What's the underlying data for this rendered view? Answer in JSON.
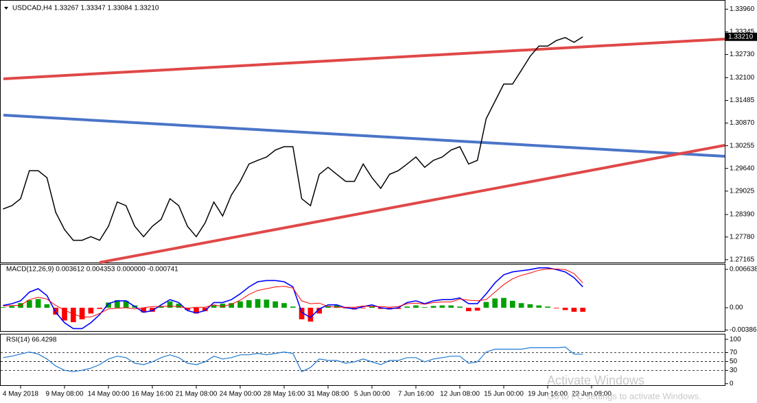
{
  "chart_data": [
    {
      "type": "line",
      "title": "USDCAD,H4 1.33267 1.33347 1.33084 1.33210",
      "color": "#000000",
      "last_price_label": "1.33210",
      "categories": [
        null,
        null,
        "4 May 2018",
        null,
        null,
        null,
        null,
        "9 May 08:00",
        null,
        null,
        null,
        null,
        "14 May 00:00",
        null,
        null,
        null,
        null,
        "16 May 16:00",
        null,
        null,
        null,
        null,
        "21 May 08:00",
        null,
        null,
        null,
        null,
        "24 May 00:00",
        null,
        null,
        null,
        null,
        "28 May 16:00",
        null,
        null,
        null,
        null,
        "31 May 08:00",
        null,
        null,
        null,
        null,
        "5 Jun 00:00",
        null,
        null,
        null,
        null,
        "7 Jun 16:00",
        null,
        null,
        null,
        null,
        "12 Jun 08:00",
        null,
        null,
        null,
        null,
        "15 Jun 00:00",
        null,
        null,
        null,
        null,
        "19 Jun 16:00",
        null,
        null,
        null,
        null,
        "22 Jun 08:00"
      ],
      "values": [
        1.2854,
        1.2863,
        1.2882,
        1.2958,
        1.2958,
        1.2939,
        1.2845,
        1.2798,
        1.2769,
        1.2769,
        1.2779,
        1.2769,
        1.2807,
        1.2873,
        1.2863,
        1.2807,
        1.2779,
        1.2807,
        1.2826,
        1.2882,
        1.2863,
        1.2807,
        1.2779,
        1.2816,
        1.2873,
        1.2835,
        1.2892,
        1.2929,
        1.2976,
        1.2986,
        1.2995,
        1.3014,
        1.3023,
        1.3023,
        1.2882,
        1.2863,
        1.2948,
        1.2967,
        1.2948,
        1.2929,
        1.2929,
        1.2976,
        1.2939,
        1.291,
        1.2948,
        1.2958,
        1.2976,
        1.2995,
        1.2967,
        1.2986,
        1.2995,
        1.3014,
        1.3023,
        1.2976,
        1.2986,
        1.3099,
        1.3146,
        1.3193,
        1.3193,
        1.323,
        1.3268,
        1.3296,
        1.3296,
        1.3311,
        1.3319,
        1.3306,
        1.3321,
        null
      ],
      "ylim": [
        1.2707,
        1.3419
      ],
      "yticks": [
        {
          "value": 1.3396,
          "label": "1.33960"
        },
        1.33345,
        {
          "value": 1.3273,
          "label": "1.32730"
        },
        {
          "value": 1.321,
          "label": "1.32100"
        },
        1.31485,
        {
          "value": 1.3087,
          "label": "1.30870"
        },
        1.30255,
        {
          "value": 1.2964,
          "label": "1.29640"
        },
        1.29025,
        {
          "value": 1.2839,
          "label": "1.28390"
        },
        {
          "value": 1.2778,
          "label": "1.27780"
        },
        1.27165
      ]
    },
    {
      "type": "macd",
      "title": "MACD(12,26,9) 0.003612 0.004353 0.000000 -0.000741",
      "series": [
        {
          "color": "#0000ff",
          "values": [
            0.0004,
            0.0007,
            0.0012,
            0.0027,
            0.0033,
            0.0021,
            -0.0008,
            -0.0026,
            -0.0036,
            -0.0036,
            -0.0026,
            -0.0012,
            0.0007,
            0.0012,
            0.0012,
            0.0002,
            -0.0008,
            -0.0005,
            0.0005,
            0.0014,
            0.0009,
            -0.0005,
            -0.0009,
            -0.0005,
            0.0009,
            0.0009,
            0.0014,
            0.0024,
            0.0036,
            0.0045,
            0.0047,
            0.0047,
            0.0045,
            0.0036,
            -0.0008,
            -0.0017,
            -0.0002,
            0.0005,
            0.0005,
            0,
            -0.0002,
            0.0002,
            0.0005,
            0,
            -0.0002,
            0,
            0.0009,
            0.0012,
            0.0007,
            0.0012,
            0.0014,
            0.0014,
            0.0017,
            0.0007,
            0.0007,
            0.0024,
            0.0043,
            0.0057,
            0.0062,
            0.0064,
            0.0066,
            0.0069,
            0.0069,
            0.0066,
            0.0062,
            0.0052,
            0.0036,
            null
          ]
        },
        {
          "color": "#ff0000",
          "values": [
            0.0003,
            0.0004,
            0.0004,
            0.0014,
            0.0018,
            0.0015,
            0.0004,
            -0.0004,
            -0.0011,
            -0.0016,
            -0.0016,
            -0.001,
            -0.0002,
            -0.0001,
            0,
            -0.0002,
            0,
            0.0002,
            0.0002,
            0.0003,
            0.0002,
            -0.0001,
            0.0001,
            0.0001,
            0.0005,
            0.0002,
            0.0006,
            0.0013,
            0.0023,
            0.003,
            0.0033,
            0.0036,
            0.0037,
            0.0034,
            0.0012,
            0.0007,
            0.0008,
            0.0002,
            0.0001,
            0.0001,
            0.0001,
            0.0003,
            0.0002,
            0.0002,
            0.0001,
            0.0002,
            0.0007,
            0.0008,
            0.0006,
            0.0009,
            0.001,
            0.001,
            0.0015,
            0.0013,
            0.0012,
            0.0014,
            0.0027,
            0.004,
            0.005,
            0.0056,
            0.006,
            0.0065,
            0.0067,
            0.0067,
            0.0066,
            0.0059,
            0.0043,
            null
          ]
        }
      ],
      "histogram": {
        "positive_color": "#00a000",
        "negative_color": "#ff0000",
        "values": [
          0.0001,
          0.0003,
          0.0008,
          0.0013,
          0.0015,
          0.0006,
          -0.0012,
          -0.0022,
          -0.0025,
          -0.002,
          -0.001,
          -0.0002,
          0.0009,
          0.0013,
          0.0012,
          0.0004,
          -0.0008,
          -0.0007,
          0.0003,
          0.0011,
          0.0007,
          -0.0004,
          -0.001,
          -0.0006,
          0.0004,
          0.0007,
          0.0008,
          0.0011,
          0.0013,
          0.0015,
          0.0014,
          0.0011,
          0.0008,
          0.0002,
          -0.002,
          -0.0024,
          -0.001,
          0.0003,
          0.0004,
          -0.0001,
          -0.0003,
          -0.0001,
          0.0003,
          -0.0002,
          -0.0003,
          -0.0002,
          0.0002,
          0.0004,
          0.0001,
          0.0003,
          0.0004,
          0.0004,
          0.0002,
          -0.0006,
          -0.0005,
          0.001,
          0.0016,
          0.0017,
          0.0012,
          0.0008,
          0.0006,
          0.0004,
          0.0002,
          -0.0001,
          -0.0004,
          -0.0007,
          -0.0007,
          null
        ]
      },
      "ylim": [
        -0.004148,
        0.007466
      ],
      "yticks": [
        0.006638,
        {
          "value": 0,
          "label": "0.00"
        },
        -0.003861
      ]
    },
    {
      "type": "line",
      "title": "RSI(14) 66.4298",
      "color": "#1e78d2",
      "values": [
        58.7,
        61.9,
        66.7,
        71.4,
        66.7,
        55.6,
        39.7,
        30.2,
        27.0,
        30.2,
        34.9,
        42.9,
        55.6,
        61.9,
        58.7,
        46.0,
        42.9,
        49.2,
        58.7,
        65.1,
        58.7,
        46.0,
        42.9,
        49.2,
        61.9,
        55.6,
        58.7,
        65.1,
        65.1,
        68.3,
        65.1,
        68.3,
        71.4,
        68.3,
        27.0,
        36.5,
        55.6,
        52.4,
        52.4,
        46.0,
        49.2,
        55.6,
        49.2,
        42.9,
        52.4,
        52.4,
        58.7,
        58.7,
        49.2,
        55.6,
        58.7,
        61.9,
        61.9,
        46.0,
        49.2,
        71.4,
        77.8,
        77.8,
        77.8,
        77.8,
        81.0,
        81.0,
        81.0,
        81.0,
        82.5,
        66.7,
        66.4,
        null
      ],
      "ylim": [
        -5,
        111
      ],
      "yticks": [
        100,
        70,
        50,
        30,
        0
      ],
      "levels": [
        70,
        50,
        30
      ]
    }
  ],
  "overlay": {
    "title": "Activate Windows",
    "subtitle": "Go to PC settings to activate Windows."
  }
}
